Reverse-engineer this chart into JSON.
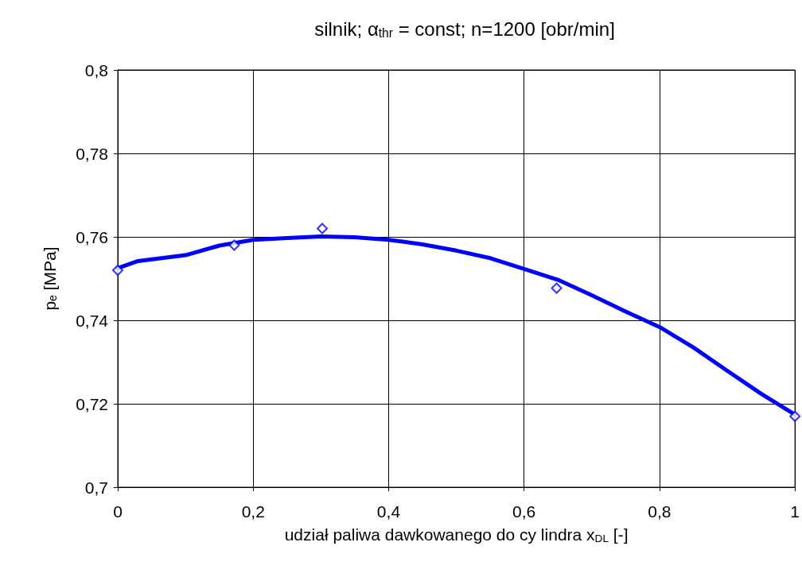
{
  "chart_data": {
    "type": "line",
    "title": "silnik; α$_{thr}$ = const; n=1200 [obr/min]",
    "xlabel": "udział paliwa dawkowanego do cy lindra x$_{DL}$ [-]",
    "ylabel": "pₑ [MPa]",
    "xlim": [
      0,
      1
    ],
    "xticks": [
      0,
      {
        "value": 0.2,
        "label": "0,2"
      },
      {
        "value": 0.4,
        "label": "0,4"
      },
      {
        "value": 0.6,
        "label": "0,6"
      },
      {
        "value": 0.8,
        "label": "0,8"
      },
      1
    ],
    "ylim": [
      0.7,
      0.8
    ],
    "yticks": [
      {
        "value": 0.7,
        "label": "0,7"
      },
      {
        "value": 0.72,
        "label": "0,72"
      },
      {
        "value": 0.74,
        "label": "0,74"
      },
      {
        "value": 0.76,
        "label": "0,76"
      },
      {
        "value": 0.78,
        "label": "0,78"
      },
      {
        "value": 0.8,
        "label": "0,8"
      }
    ],
    "grid": true,
    "series": [
      {
        "color": "#0000ff",
        "marker": "none",
        "line_style": "solid",
        "x": [
          0,
          0.03,
          0.1,
          0.15,
          0.2,
          0.25,
          0.3,
          0.35,
          0.4,
          0.45,
          0.5,
          0.55,
          0.6,
          0.65,
          0.7,
          0.75,
          0.8,
          0.85,
          0.9,
          0.95,
          1
        ],
        "values": [
          0.7525,
          0.7542,
          0.7556,
          0.7579,
          0.7593,
          0.7597,
          0.7601,
          0.7599,
          0.7593,
          0.7582,
          0.7567,
          0.7549,
          0.7523,
          0.7497,
          0.746,
          0.7421,
          0.7384,
          0.7335,
          0.7279,
          0.7224,
          0.7174
        ]
      },
      {
        "type": "scatter",
        "color": "#0000ff",
        "marker": "diamond",
        "x": [
          0,
          0.172,
          0.302,
          0.648,
          1
        ],
        "values": [
          0.752,
          0.758,
          0.762,
          0.7477,
          0.717
        ]
      }
    ]
  }
}
